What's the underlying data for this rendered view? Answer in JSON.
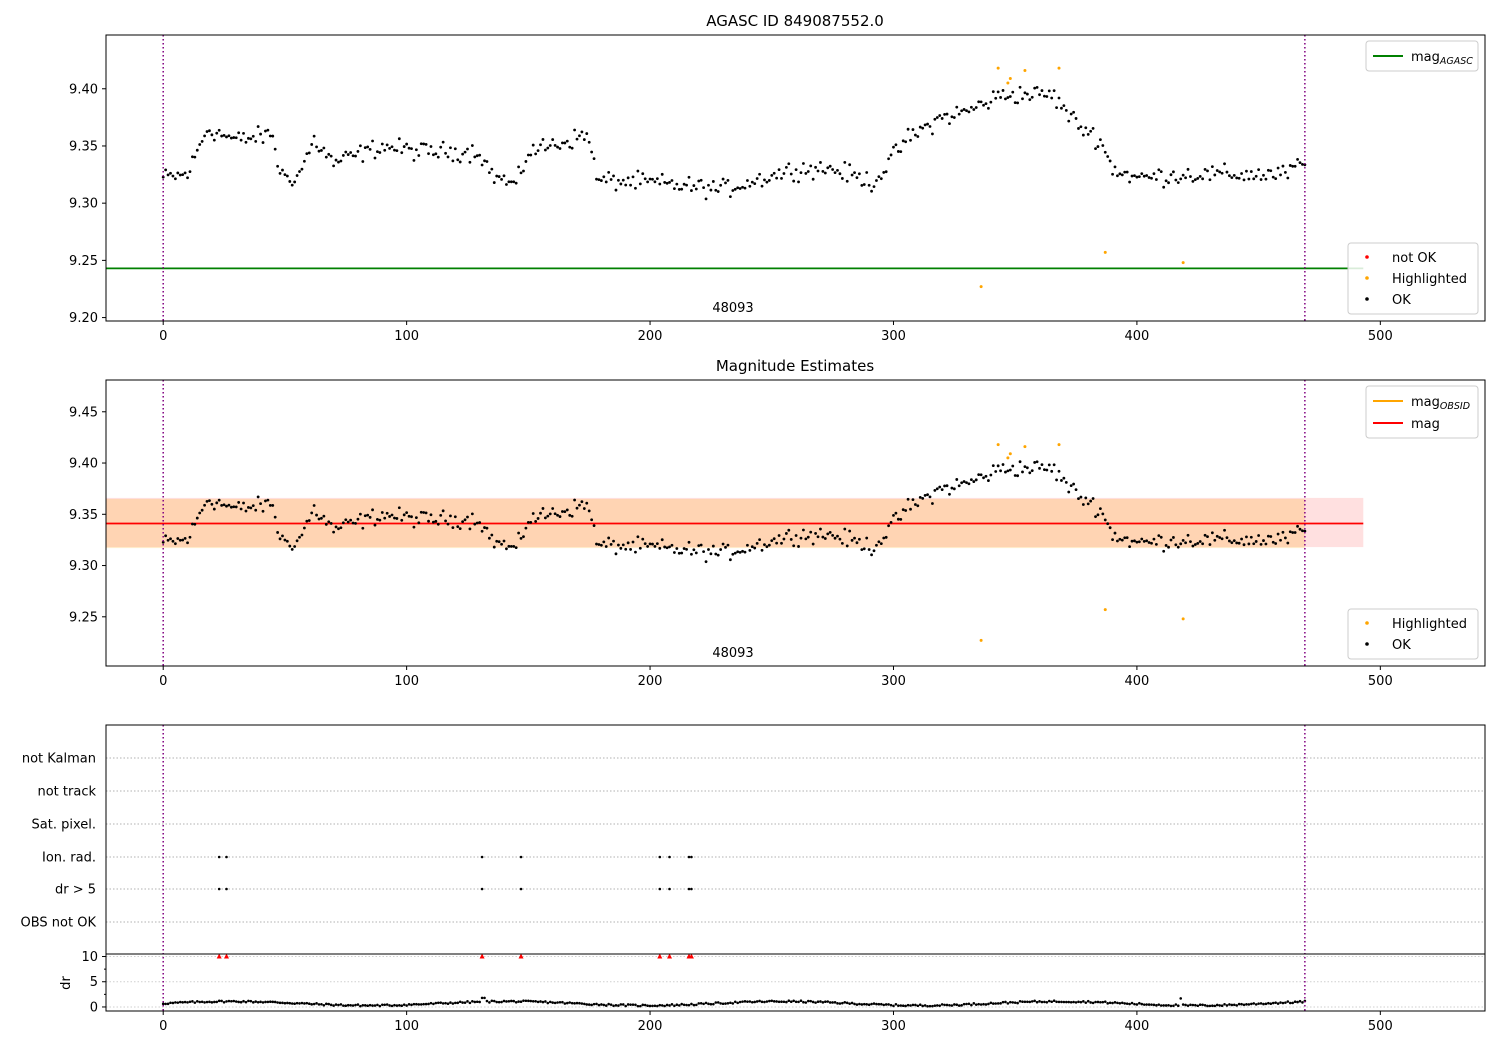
{
  "chart_data": [
    {
      "type": "scatter",
      "title": "AGASC ID 849087552.0",
      "xlim": [
        -23.5,
        543
      ],
      "ylim": [
        9.197,
        9.447
      ],
      "xticks": [
        0,
        100,
        200,
        300,
        400,
        500
      ],
      "yticks": [
        9.2,
        9.25,
        9.3,
        9.35,
        9.4
      ],
      "ytick_labels": [
        "9.20",
        "9.25",
        "9.30",
        "9.35",
        "9.40"
      ],
      "annotation": "48093",
      "vlines": [
        0,
        469
      ],
      "mag_agasc": 9.243,
      "highlighted": [
        {
          "x": 336,
          "y": 9.227
        },
        {
          "x": 343,
          "y": 9.418
        },
        {
          "x": 347,
          "y": 9.405
        },
        {
          "x": 348,
          "y": 9.409
        },
        {
          "x": 354,
          "y": 9.416
        },
        {
          "x": 368,
          "y": 9.418
        },
        {
          "x": 387,
          "y": 9.257
        },
        {
          "x": 419,
          "y": 9.248
        }
      ],
      "legend_lines": [
        {
          "label": "mag",
          "sub": "AGASC",
          "color": "#008000"
        }
      ],
      "legend_points": [
        {
          "label": "not OK",
          "color": "#ff0000"
        },
        {
          "label": "Highlighted",
          "color": "#ffa500"
        },
        {
          "label": "OK",
          "color": "#000000"
        }
      ]
    },
    {
      "type": "scatter",
      "title": "Magnitude Estimates",
      "xlim": [
        -23.5,
        543
      ],
      "ylim": [
        9.202,
        9.481
      ],
      "xticks": [
        0,
        100,
        200,
        300,
        400,
        500
      ],
      "yticks": [
        9.25,
        9.3,
        9.35,
        9.4,
        9.45
      ],
      "ytick_labels": [
        "9.25",
        "9.30",
        "9.35",
        "9.40",
        "9.45"
      ],
      "annotation": "48093",
      "vlines": [
        0,
        469
      ],
      "mag": 9.341,
      "mag_band": [
        9.318,
        9.366
      ],
      "mag_obsid": 9.341,
      "mag_obsid_band": [
        9.317,
        9.365
      ],
      "highlighted": [
        {
          "x": 336,
          "y": 9.227
        },
        {
          "x": 343,
          "y": 9.418
        },
        {
          "x": 347,
          "y": 9.405
        },
        {
          "x": 348,
          "y": 9.409
        },
        {
          "x": 354,
          "y": 9.416
        },
        {
          "x": 368,
          "y": 9.418
        },
        {
          "x": 387,
          "y": 9.257
        },
        {
          "x": 419,
          "y": 9.248
        }
      ],
      "legend_lines": [
        {
          "label": "mag",
          "sub": "OBSID",
          "color": "#ffa500"
        },
        {
          "label": "mag",
          "sub": "",
          "color": "#ff0000"
        }
      ],
      "legend_points": [
        {
          "label": "Highlighted",
          "color": "#ffa500"
        },
        {
          "label": "OK",
          "color": "#000000"
        }
      ]
    },
    {
      "type": "scatter",
      "xlim": [
        -23.5,
        543
      ],
      "xticks": [
        0,
        100,
        200,
        300,
        400,
        500
      ],
      "flag_rows": [
        "not Kalman",
        "not track",
        "Sat. pixel.",
        "Ion. rad.",
        "dr > 5",
        "OBS not OK"
      ],
      "ion_rad_x": [
        23,
        26,
        131,
        147,
        204,
        208,
        216,
        217
      ],
      "dr_gt5_x": [
        23,
        26,
        131,
        147,
        204,
        208,
        216,
        217
      ],
      "dr_ylabel": "dr",
      "dr_yticks": [
        0,
        5,
        10
      ],
      "dr_ylim": [
        -0.8,
        10.5
      ],
      "dr_clipped_x": [
        23,
        26,
        131,
        147,
        204,
        208,
        216,
        217
      ],
      "dr_clipped_value": 10,
      "vlines": [
        0,
        469
      ]
    }
  ]
}
